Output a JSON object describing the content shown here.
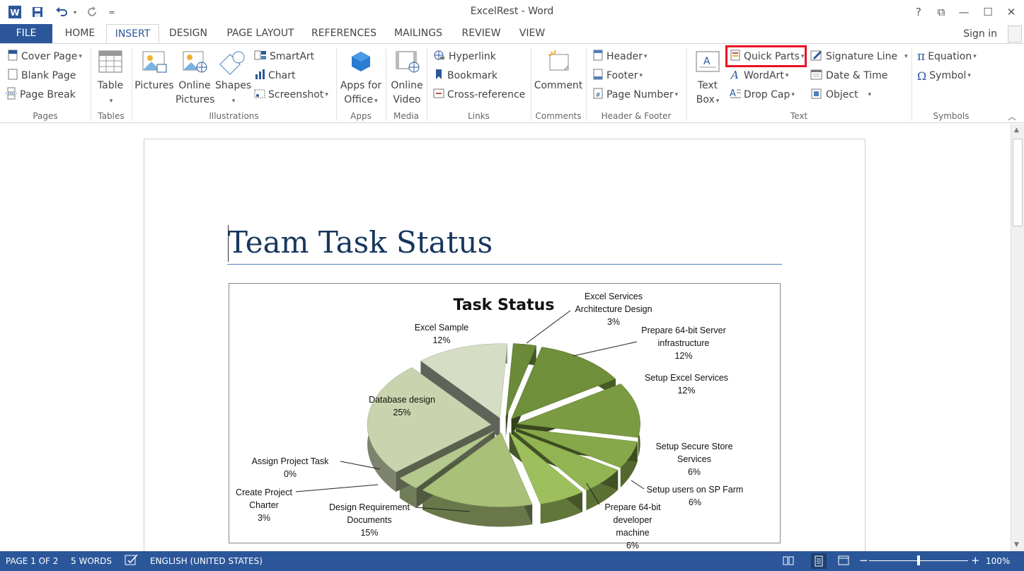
{
  "window": {
    "title": "ExcelRest - Word",
    "help": "?",
    "restore_ribbon": "⧉",
    "minimize": "—",
    "maximize": "☐",
    "close": "✕"
  },
  "qat": {
    "app_icon": "W",
    "save_icon": "save-icon",
    "undo_icon": "undo-icon",
    "redo_icon": "redo-icon",
    "customize": "="
  },
  "tabs": [
    "FILE",
    "HOME",
    "INSERT",
    "DESIGN",
    "PAGE LAYOUT",
    "REFERENCES",
    "MAILINGS",
    "REVIEW",
    "VIEW"
  ],
  "active_tab": "INSERT",
  "signin": "Sign in",
  "ribbon": {
    "pages": {
      "label": "Pages",
      "cover_page": "Cover Page",
      "blank_page": "Blank Page",
      "page_break": "Page Break"
    },
    "tables": {
      "label": "Tables",
      "table": "Table"
    },
    "illustrations": {
      "label": "Illustrations",
      "pictures": "Pictures",
      "online_1": "Online",
      "online_2": "Pictures",
      "shapes": "Shapes",
      "smartart": "SmartArt",
      "chart": "Chart",
      "screenshot": "Screenshot"
    },
    "apps": {
      "label": "Apps",
      "apps_1": "Apps for",
      "apps_2": "Office"
    },
    "media": {
      "label": "Media",
      "video_1": "Online",
      "video_2": "Video"
    },
    "links": {
      "label": "Links",
      "hyperlink": "Hyperlink",
      "bookmark": "Bookmark",
      "cross_reference": "Cross-reference"
    },
    "comments": {
      "label": "Comments",
      "comment": "Comment"
    },
    "header_footer": {
      "label": "Header & Footer",
      "header": "Header",
      "footer": "Footer",
      "page_number": "Page Number"
    },
    "text": {
      "label": "Text",
      "text_box_1": "Text",
      "text_box_2": "Box",
      "quick_parts": "Quick Parts",
      "wordart": "WordArt",
      "drop_cap": "Drop Cap",
      "signature_line": "Signature Line",
      "date_time": "Date & Time",
      "object": "Object"
    },
    "symbols": {
      "label": "Symbols",
      "equation": "Equation",
      "symbol": "Symbol"
    }
  },
  "document": {
    "title": "Team Task Status"
  },
  "chart_data": {
    "type": "pie",
    "title": "Task Status",
    "slices": [
      {
        "label_lines": [
          "Excel Services",
          "Architecture Design"
        ],
        "pct": "3%",
        "value": 3,
        "color": "#6b8a3a"
      },
      {
        "label_lines": [
          "Prepare 64-bit Server",
          "infrastructure"
        ],
        "pct": "12%",
        "value": 12,
        "color": "#6f8f3b"
      },
      {
        "label_lines": [
          "Setup Excel Services"
        ],
        "pct": "12%",
        "value": 12,
        "color": "#7a9b42"
      },
      {
        "label_lines": [
          "Setup Secure Store",
          "Services"
        ],
        "pct": "6%",
        "value": 6,
        "color": "#86a84a"
      },
      {
        "label_lines": [
          "Setup users on SP Farm"
        ],
        "pct": "6%",
        "value": 6,
        "color": "#92b453"
      },
      {
        "label_lines": [
          "Prepare 64-bit",
          "developer",
          "machine"
        ],
        "pct": "6%",
        "value": 6,
        "color": "#9dc05c"
      },
      {
        "label_lines": [
          "Design Requirement",
          "Documents"
        ],
        "pct": "15%",
        "value": 15,
        "color": "#a9c078"
      },
      {
        "label_lines": [
          "Create Project",
          "Charter"
        ],
        "pct": "3%",
        "value": 3,
        "color": "#b5c98e"
      },
      {
        "label_lines": [
          "Assign Project Task"
        ],
        "pct": "0%",
        "value": 0,
        "color": "#bfcf9f"
      },
      {
        "label_lines": [
          "Database design"
        ],
        "pct": "25%",
        "value": 25,
        "color": "#c9d4ae"
      },
      {
        "label_lines": [
          "Excel Sample"
        ],
        "pct": "12%",
        "value": 12,
        "color": "#d6ddc5"
      }
    ]
  },
  "status": {
    "page": "PAGE 1 OF 2",
    "words": "5 WORDS",
    "language": "ENGLISH (UNITED STATES)",
    "zoom": "100%",
    "minus": "−",
    "plus": "+"
  },
  "colors": {
    "accent": "#2b579a",
    "highlight": "#e81123",
    "title": "#17365d"
  }
}
